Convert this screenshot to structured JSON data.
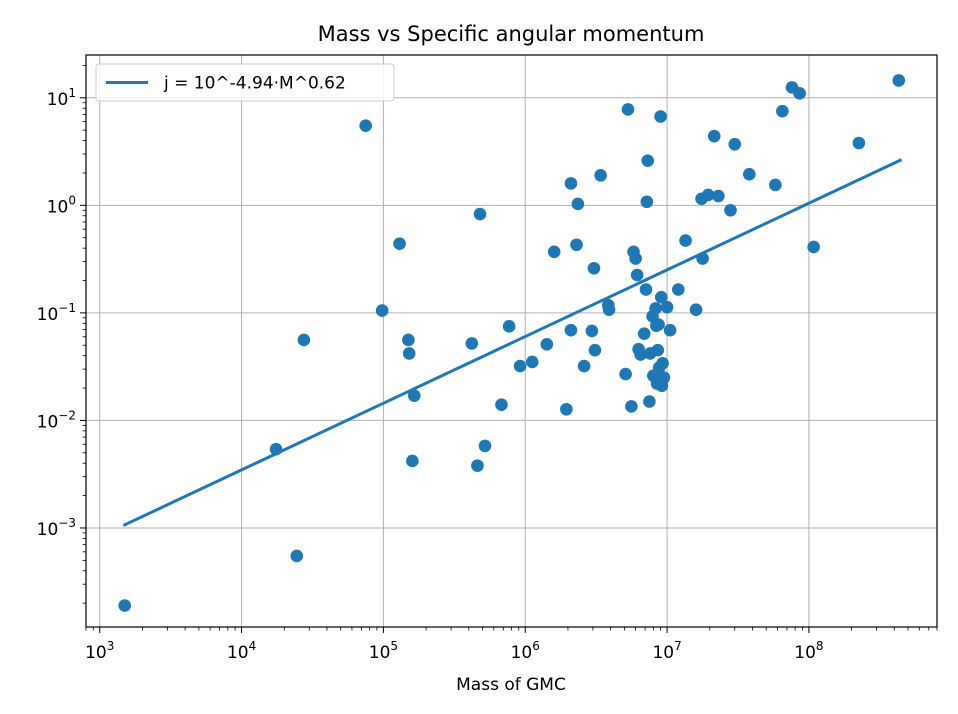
{
  "chart_data": {
    "type": "scatter",
    "title": "Mass vs Specific angular momentum",
    "xlabel": "Mass of GMC",
    "ylabel": "",
    "xscale": "log",
    "yscale": "log",
    "xlim": [
      800.0,
      800000000.0
    ],
    "ylim": [
      0.00012,
      25
    ],
    "grid": true,
    "legend_position": "top-left",
    "x_ticks": [
      {
        "base": "10",
        "exp": "3",
        "value": 1000.0
      },
      {
        "base": "10",
        "exp": "4",
        "value": 10000.0
      },
      {
        "base": "10",
        "exp": "5",
        "value": 100000.0
      },
      {
        "base": "10",
        "exp": "6",
        "value": 1000000.0
      },
      {
        "base": "10",
        "exp": "7",
        "value": 10000000.0
      },
      {
        "base": "10",
        "exp": "8",
        "value": 100000000.0
      }
    ],
    "y_ticks": [
      {
        "base": "10",
        "exp": "−3",
        "value": 0.001
      },
      {
        "base": "10",
        "exp": "−2",
        "value": 0.01
      },
      {
        "base": "10",
        "exp": "−1",
        "value": 0.1
      },
      {
        "base": "10",
        "exp": "0",
        "value": 1.0
      },
      {
        "base": "10",
        "exp": "1",
        "value": 10.0
      }
    ],
    "fit_line": {
      "label": "j = 10^-4.94·M^0.62",
      "color": "#1f77b4",
      "log_intercept": -4.94,
      "slope": 0.62,
      "x_range": [
        1500.0,
        440000000.0
      ]
    },
    "scatter": {
      "color": "#1f77b4",
      "points": [
        [
          1500.0,
          0.00019
        ],
        [
          17500.0,
          0.0054
        ],
        [
          24500.0,
          0.00055
        ],
        [
          27500.0,
          0.056
        ],
        [
          75000.0,
          5.5
        ],
        [
          98000.0,
          0.105
        ],
        [
          130000.0,
          0.44
        ],
        [
          150000.0,
          0.056
        ],
        [
          152000.0,
          0.042
        ],
        [
          160000.0,
          0.0042
        ],
        [
          165000.0,
          0.017
        ],
        [
          420000.0,
          0.052
        ],
        [
          460000.0,
          0.0038
        ],
        [
          480000.0,
          0.83
        ],
        [
          520000.0,
          0.0058
        ],
        [
          680000.0,
          0.014
        ],
        [
          770000.0,
          0.075
        ],
        [
          920000.0,
          0.032
        ],
        [
          1120000.0,
          0.035
        ],
        [
          1420000.0,
          0.051
        ],
        [
          1600000.0,
          0.37
        ],
        [
          1950000.0,
          0.0127
        ],
        [
          2100000.0,
          1.6
        ],
        [
          2100000.0,
          0.069
        ],
        [
          2300000.0,
          0.43
        ],
        [
          2350000.0,
          1.03
        ],
        [
          2600000.0,
          0.032
        ],
        [
          2950000.0,
          0.068
        ],
        [
          3050000.0,
          0.26
        ],
        [
          3100000.0,
          0.045
        ],
        [
          3400000.0,
          1.9
        ],
        [
          3850000.0,
          0.118
        ],
        [
          3900000.0,
          0.107
        ],
        [
          5100000.0,
          0.027
        ],
        [
          5300000.0,
          7.8
        ],
        [
          5600000.0,
          0.0135
        ],
        [
          5800000.0,
          0.37
        ],
        [
          6000000.0,
          0.32
        ],
        [
          6150000.0,
          0.225
        ],
        [
          6300000.0,
          0.046
        ],
        [
          6500000.0,
          0.041
        ],
        [
          6900000.0,
          0.064
        ],
        [
          7100000.0,
          0.165
        ],
        [
          7200000.0,
          1.08
        ],
        [
          7300000.0,
          2.6
        ],
        [
          7500000.0,
          0.015
        ],
        [
          7600000.0,
          0.042
        ],
        [
          7900000.0,
          0.093
        ],
        [
          8000000.0,
          0.026
        ],
        [
          8300000.0,
          0.11
        ],
        [
          8400000.0,
          0.076
        ],
        [
          8500000.0,
          0.022
        ],
        [
          8600000.0,
          0.045
        ],
        [
          8700000.0,
          0.078
        ],
        [
          8800000.0,
          0.031
        ],
        [
          8900000.0,
          0.023
        ],
        [
          9000000.0,
          6.7
        ],
        [
          9100000.0,
          0.14
        ],
        [
          9200000.0,
          0.021
        ],
        [
          9300000.0,
          0.034
        ],
        [
          9500000.0,
          0.025
        ],
        [
          10000000.0,
          0.113
        ],
        [
          10500000.0,
          0.069
        ],
        [
          12000000.0,
          0.165
        ],
        [
          13500000.0,
          0.47
        ],
        [
          16000000.0,
          0.107
        ],
        [
          17500000.0,
          1.15
        ],
        [
          17800000.0,
          0.32
        ],
        [
          19500000.0,
          1.25
        ],
        [
          21500000.0,
          4.4
        ],
        [
          23000000.0,
          1.22
        ],
        [
          28000000.0,
          0.9
        ],
        [
          30000000.0,
          3.7
        ],
        [
          38000000.0,
          1.95
        ],
        [
          58000000.0,
          1.55
        ],
        [
          65000000.0,
          7.5
        ],
        [
          76000000.0,
          12.5
        ],
        [
          86000000.0,
          11.0
        ],
        [
          108000000.0,
          0.41
        ],
        [
          225000000.0,
          3.8
        ],
        [
          430000000.0,
          14.5
        ]
      ]
    }
  }
}
